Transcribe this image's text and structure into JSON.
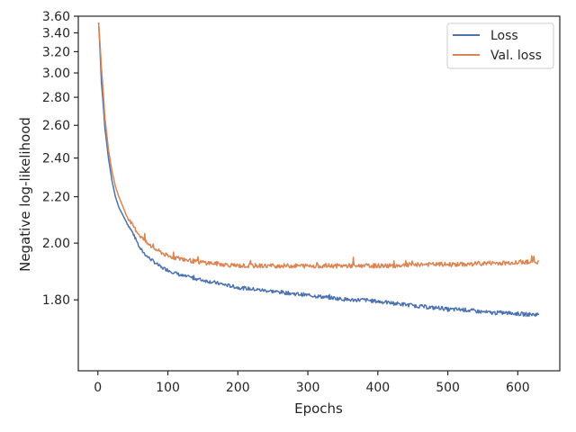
{
  "chart_data": {
    "type": "line",
    "title": "",
    "xlabel": "Epochs",
    "ylabel": "Negative log-likelihood",
    "y_scale": "reciprocal",
    "xlim": [
      -28,
      660
    ],
    "ylim": [
      1.6,
      3.6
    ],
    "grid": false,
    "legend_position": "top-right",
    "x_ticks": [
      0,
      100,
      200,
      300,
      400,
      500,
      600
    ],
    "x_tick_labels": [
      "0",
      "100",
      "200",
      "300",
      "400",
      "500",
      "600"
    ],
    "y_ticks": [
      1.8,
      2.0,
      2.2,
      2.4,
      2.6,
      2.8,
      3.0,
      3.2,
      3.4,
      3.6
    ],
    "y_tick_labels": [
      "1.80",
      "2.00",
      "2.20",
      "2.40",
      "2.60",
      "2.80",
      "3.00",
      "3.20",
      "3.40",
      "3.60"
    ],
    "series": [
      {
        "name": "Loss",
        "color": "#4c72b0",
        "x": [
          1,
          5,
          10,
          15,
          20,
          25,
          30,
          40,
          50,
          60,
          70,
          80,
          90,
          100,
          120,
          140,
          160,
          180,
          200,
          220,
          240,
          260,
          280,
          300,
          320,
          340,
          360,
          380,
          400,
          420,
          440,
          460,
          480,
          490,
          500,
          520,
          540,
          560,
          580,
          600,
          615,
          630
        ],
        "y": [
          3.52,
          2.92,
          2.58,
          2.4,
          2.28,
          2.2,
          2.15,
          2.09,
          2.04,
          1.98,
          1.95,
          1.93,
          1.91,
          1.9,
          1.88,
          1.87,
          1.86,
          1.85,
          1.84,
          1.835,
          1.83,
          1.825,
          1.82,
          1.815,
          1.81,
          1.805,
          1.8,
          1.8,
          1.795,
          1.79,
          1.785,
          1.78,
          1.775,
          1.775,
          1.77,
          1.77,
          1.765,
          1.76,
          1.76,
          1.757,
          1.755,
          1.755
        ]
      },
      {
        "name": "Val. loss",
        "color": "#dd8452",
        "x": [
          1,
          5,
          10,
          15,
          20,
          25,
          30,
          40,
          50,
          60,
          70,
          80,
          90,
          100,
          120,
          140,
          160,
          180,
          200,
          220,
          240,
          260,
          280,
          300,
          320,
          340,
          360,
          380,
          400,
          420,
          440,
          460,
          480,
          500,
          520,
          540,
          560,
          580,
          600,
          615,
          630
        ],
        "y": [
          3.52,
          3.05,
          2.65,
          2.45,
          2.33,
          2.25,
          2.2,
          2.12,
          2.07,
          2.03,
          2.0,
          1.98,
          1.965,
          1.95,
          1.94,
          1.93,
          1.925,
          1.92,
          1.915,
          1.915,
          1.915,
          1.915,
          1.915,
          1.915,
          1.915,
          1.915,
          1.915,
          1.915,
          1.915,
          1.915,
          1.918,
          1.92,
          1.92,
          1.92,
          1.92,
          1.922,
          1.925,
          1.925,
          1.928,
          1.93,
          1.93
        ]
      }
    ]
  }
}
